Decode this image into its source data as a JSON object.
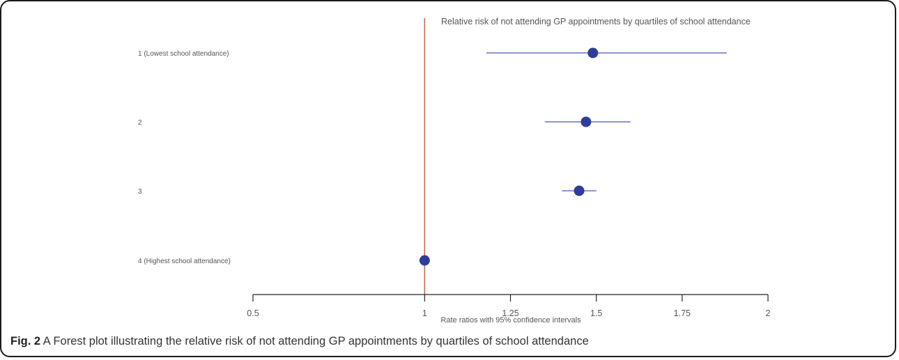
{
  "chart_data": {
    "type": "forest",
    "title": "Relative risk of not attending GP appointments by quartiles of school attendance",
    "xlabel": "Rate ratios with 95% confidence intervals",
    "xlim": [
      0.5,
      2
    ],
    "x_ticks": [
      "0.5",
      "1",
      "1.25",
      "1.5",
      "1.75",
      "2"
    ],
    "x_tick_values": [
      0.5,
      1,
      1.25,
      1.5,
      1.75,
      2
    ],
    "reference_line": 1,
    "grid": false,
    "rows": [
      {
        "label": "1 (Lowest school attendance)",
        "estimate": 1.49,
        "lower": 1.18,
        "upper": 1.88
      },
      {
        "label": "2",
        "estimate": 1.47,
        "lower": 1.35,
        "upper": 1.6
      },
      {
        "label": "3",
        "estimate": 1.45,
        "lower": 1.4,
        "upper": 1.5
      },
      {
        "label": "4 (Highest school attendance)",
        "estimate": 1.0,
        "lower": 1.0,
        "upper": 1.0
      }
    ],
    "colors": {
      "point": "#2e3d9a",
      "ci_line": "#6a74c2",
      "reference": "#c96a52",
      "axis": "#222222"
    }
  },
  "caption": {
    "label": "Fig. 2",
    "text": " A Forest plot illustrating the relative risk of not attending GP appointments by quartiles of school attendance"
  }
}
